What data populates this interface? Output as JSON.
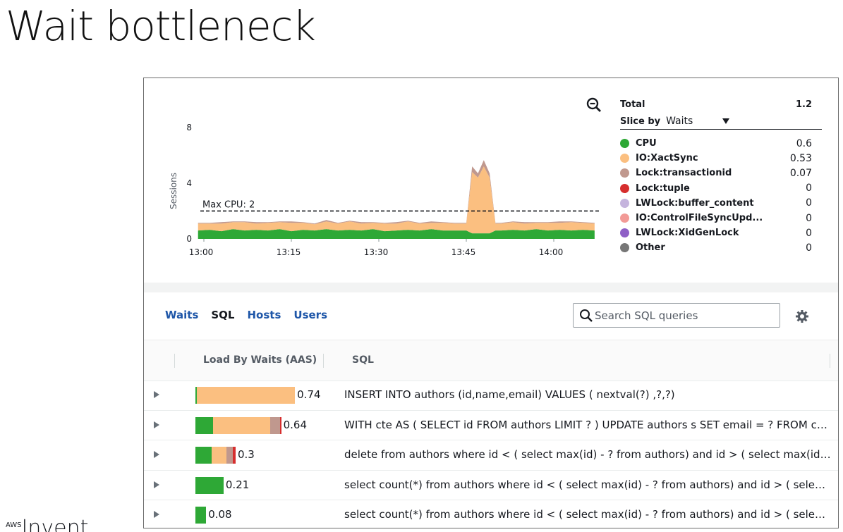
{
  "slide": {
    "title": "Wait bottleneck",
    "footer_logo_sup": "AWS",
    "footer_logo_text": "Invent"
  },
  "chart_data": {
    "type": "area",
    "ylabel": "Sessions",
    "ylim": [
      0,
      9
    ],
    "yticks": [
      0,
      4,
      8
    ],
    "x_tick_labels": [
      "13:00",
      "13:15",
      "13:30",
      "13:45",
      "14:00"
    ],
    "x_minutes": [
      0,
      15,
      30,
      45,
      60
    ],
    "max_cpu": {
      "label": "Max CPU: 2",
      "value": 2
    },
    "x": [
      -1,
      1,
      3,
      5,
      7,
      9,
      11,
      13,
      15,
      17,
      19,
      21,
      23,
      25,
      27,
      29,
      31,
      33,
      35,
      37,
      39,
      41,
      43,
      44,
      45,
      46,
      47,
      48,
      49,
      50,
      51,
      53,
      55,
      57,
      59,
      61,
      63,
      65,
      67
    ],
    "series": [
      {
        "name": "CPU",
        "color": "#2ea836",
        "values": [
          0.6,
          0.65,
          0.55,
          0.7,
          0.6,
          0.65,
          0.6,
          0.7,
          0.55,
          0.65,
          0.6,
          0.7,
          0.6,
          0.65,
          0.6,
          0.7,
          0.55,
          0.6,
          0.65,
          0.6,
          0.7,
          0.6,
          0.6,
          0.6,
          0.6,
          0.4,
          0.4,
          0.4,
          0.4,
          0.6,
          0.6,
          0.65,
          0.6,
          0.7,
          0.6,
          0.65,
          0.6,
          0.65,
          0.6
        ]
      },
      {
        "name": "IO:XactSync",
        "color": "#fbbf80",
        "values": [
          0.5,
          0.45,
          0.55,
          0.5,
          0.6,
          0.45,
          0.55,
          0.5,
          0.6,
          0.5,
          0.45,
          0.55,
          0.5,
          0.6,
          0.5,
          0.45,
          0.55,
          0.5,
          0.6,
          0.5,
          0.45,
          0.55,
          0.5,
          0.5,
          0.5,
          4.4,
          4.0,
          4.8,
          4.0,
          0.5,
          0.5,
          0.55,
          0.5,
          0.45,
          0.55,
          0.5,
          0.6,
          0.5,
          0.5
        ]
      },
      {
        "name": "Lock:transactionid",
        "color": "#c0988e",
        "values": [
          0.05,
          0.05,
          0.1,
          0.05,
          0.05,
          0.1,
          0.05,
          0.05,
          0.1,
          0.05,
          0.05,
          0.1,
          0.05,
          0.05,
          0.1,
          0.05,
          0.05,
          0.1,
          0.05,
          0.05,
          0.1,
          0.05,
          0.05,
          0.05,
          0.05,
          0.4,
          0.3,
          0.45,
          0.3,
          0.05,
          0.05,
          0.05,
          0.1,
          0.05,
          0.05,
          0.1,
          0.05,
          0.05,
          0.05
        ]
      }
    ]
  },
  "legend": {
    "total_label": "Total",
    "total_value": "1.2",
    "slice_label": "Slice by",
    "slice_value": "Waits",
    "items": [
      {
        "name": "CPU",
        "value": "0.6",
        "color": "#2ea836"
      },
      {
        "name": "IO:XactSync",
        "value": "0.53",
        "color": "#fbbf80"
      },
      {
        "name": "Lock:transactionid",
        "value": "0.07",
        "color": "#c0988e"
      },
      {
        "name": "Lock:tuple",
        "value": "0",
        "color": "#d62e2e"
      },
      {
        "name": "LWLock:buffer_content",
        "value": "0",
        "color": "#c5b4dd"
      },
      {
        "name": "IO:ControlFileSyncUpd...",
        "value": "0",
        "color": "#f29a96"
      },
      {
        "name": "LWLock:XidGenLock",
        "value": "0",
        "color": "#8e5fc6"
      },
      {
        "name": "Other",
        "value": "0",
        "color": "#777777"
      }
    ]
  },
  "tabs": [
    {
      "label": "Waits",
      "active": false
    },
    {
      "label": "SQL",
      "active": true
    },
    {
      "label": "Hosts",
      "active": false
    },
    {
      "label": "Users",
      "active": false
    }
  ],
  "search": {
    "placeholder": "Search SQL queries"
  },
  "table": {
    "col_load": "Load By Waits (AAS)",
    "col_sql": "SQL",
    "rows": [
      {
        "load": "0.74",
        "sql": "INSERT INTO authors (id,name,email) VALUES ( nextval(?) ,?,?)",
        "segments": [
          {
            "name": "CPU",
            "value": 0.005,
            "color": "#2ea836"
          },
          {
            "name": "IO:XactSync",
            "value": 0.735,
            "color": "#fbbf80"
          }
        ]
      },
      {
        "load": "0.64",
        "sql": "WITH cte AS ( SELECT id FROM authors LIMIT ? ) UPDATE authors s SET email = ? FROM cte WHERE s.id = cte.id",
        "segments": [
          {
            "name": "CPU",
            "value": 0.13,
            "color": "#2ea836"
          },
          {
            "name": "IO:XactSync",
            "value": 0.43,
            "color": "#fbbf80"
          },
          {
            "name": "Lock:transactionid",
            "value": 0.07,
            "color": "#c0988e"
          },
          {
            "name": "Lock:tuple",
            "value": 0.01,
            "color": "#d62e2e"
          }
        ]
      },
      {
        "load": "0.3",
        "sql": "delete from authors where id < ( select max(id) - ? from authors) and id > ( select max(id) - ? from authors)",
        "segments": [
          {
            "name": "CPU",
            "value": 0.12,
            "color": "#2ea836"
          },
          {
            "name": "IO:XactSync",
            "value": 0.11,
            "color": "#fbbf80"
          },
          {
            "name": "Lock:transactionid",
            "value": 0.05,
            "color": "#c0988e"
          },
          {
            "name": "Lock:tuple",
            "value": 0.02,
            "color": "#d62e2e"
          }
        ]
      },
      {
        "load": "0.21",
        "sql": "select count(*) from authors where id < ( select max(id) - ? from authors) and id > ( select max(id) - ? from authors)",
        "segments": [
          {
            "name": "CPU",
            "value": 0.21,
            "color": "#2ea836"
          }
        ]
      },
      {
        "load": "0.08",
        "sql": "select count(*) from authors where id < ( select max(id) - ? from authors) and id > ( select max(id) - ? from authors)",
        "segments": [
          {
            "name": "CPU",
            "value": 0.08,
            "color": "#2ea836"
          }
        ]
      }
    ]
  }
}
